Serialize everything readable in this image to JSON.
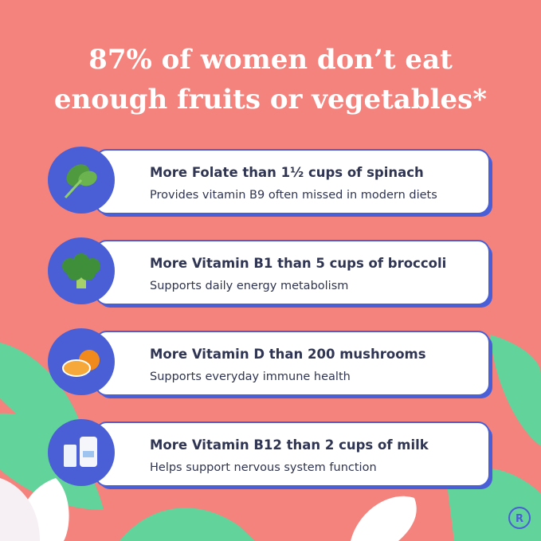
{
  "header": {
    "title_lines": [
      "87% of women don’t eat",
      "enough fruits or vegetables*"
    ]
  },
  "items": [
    {
      "title": "More Folate than 1½ cups of spinach",
      "subtitle": "Provides vitamin B9 often missed in modern diets"
    },
    {
      "title": "More Vitamin B1 than 5 cups of broccoli",
      "subtitle": "Supports daily energy metabolism"
    },
    {
      "title": "More Vitamin D than 200 mushrooms",
      "subtitle": "Supports everyday immune health"
    },
    {
      "title": "More Vitamin B12 than 2 cups of milk",
      "subtitle": "Helps support nervous system function"
    }
  ],
  "logo": "R"
}
